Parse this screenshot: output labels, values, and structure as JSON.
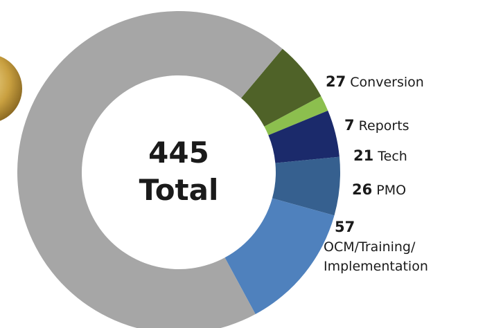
{
  "chart_data": {
    "type": "donut",
    "total": 445,
    "total_label": "Total",
    "categories": [
      "Conversion",
      "Reports",
      "Tech",
      "PMO",
      "OCM/Training/ Implementation",
      null
    ],
    "values": [
      27,
      7,
      21,
      26,
      57,
      307
    ],
    "colors": [
      "#4f6228",
      "#8cbf4e",
      "#1b2a6b",
      "#36608f",
      "#4f81bd",
      "#a6a6a6"
    ]
  }
}
